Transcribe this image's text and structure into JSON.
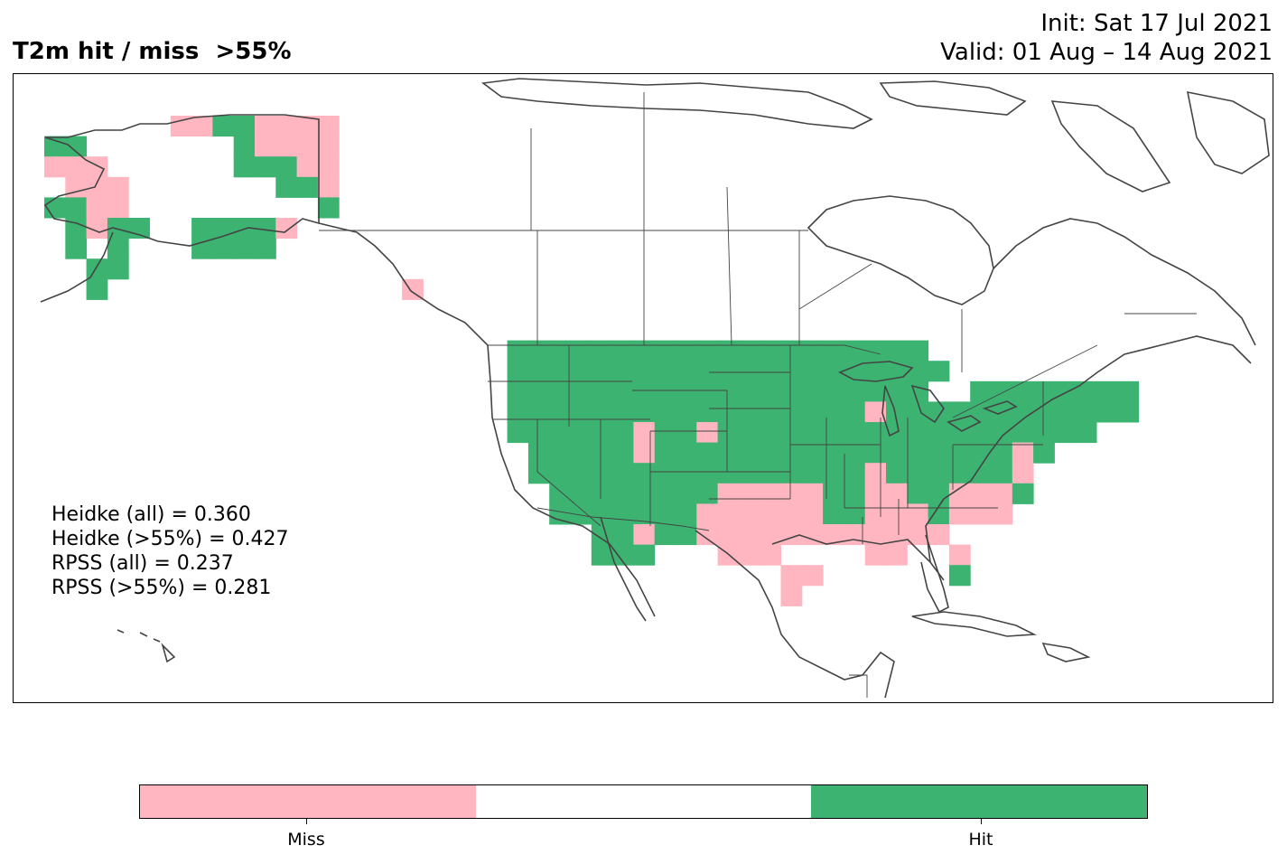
{
  "title": {
    "left": "T2m hit / miss  >55%",
    "init": "Init: Sat 17 Jul 2021",
    "valid": "Valid: 01 Aug – 14 Aug 2021"
  },
  "scores": [
    "Heidke (all) = 0.360",
    "Heidke (>55%) = 0.427",
    "RPSS (all) = 0.237",
    "RPSS (>55%) = 0.281"
  ],
  "colorbar": {
    "segments": [
      {
        "label": "Miss",
        "color": "#ffb6c1"
      },
      {
        "label": "",
        "color": "#ffffff"
      },
      {
        "label": "Hit",
        "color": "#3cb371"
      }
    ]
  },
  "colors": {
    "hit": "#3cb371",
    "miss": "#ffb6c1",
    "coast": "#444444"
  },
  "chart_data": {
    "type": "heatmap",
    "categories": [
      "Miss",
      "Hit"
    ]
  }
}
